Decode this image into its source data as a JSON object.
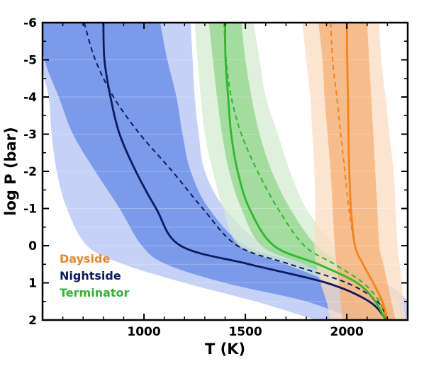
{
  "chart_data": {
    "type": "line",
    "xlabel": "T (K)",
    "ylabel": "log P (bar)",
    "xlim": [
      500,
      2300
    ],
    "ylim": [
      -6,
      2
    ],
    "y_inverted": true,
    "x_ticks": [
      1000,
      1500,
      2000
    ],
    "y_ticks": [
      -6,
      -5,
      -4,
      -3,
      -2,
      -1,
      0,
      1,
      2
    ],
    "x_tick_labels": [
      "1000",
      "1500",
      "2000"
    ],
    "y_tick_labels": [
      "-6",
      "-5",
      "-4",
      "-3",
      "-2",
      "-1",
      "0",
      "1",
      "2"
    ],
    "legend_position": "bottom-left",
    "legend_style": "colored-text",
    "y_grid": [
      -6,
      -5,
      -4,
      -3,
      -2,
      -1,
      -0.5,
      0,
      0.5,
      1,
      1.5,
      2
    ],
    "series": [
      {
        "name": "Nightside",
        "color": "#0d1a5e",
        "fill_colors": [
          "#c5d1f6",
          "#7b9bea"
        ],
        "outer_low": [
          490,
          490,
          530,
          545,
          570,
          620,
          720,
          900,
          1200,
          1550,
          1850
        ],
        "inner_low": [
          490,
          510,
          580,
          650,
          760,
          880,
          990,
          1110,
          1400,
          1800,
          2040
        ],
        "median": [
          800,
          805,
          835,
          880,
          960,
          1060,
          1180,
          1520,
          1900,
          2110,
          2195
        ],
        "dashed": [
          705,
          760,
          850,
          980,
          1140,
          1290,
          1460,
          1720,
          2000,
          2150,
          2200
        ],
        "inner_high": [
          1080,
          1115,
          1160,
          1190,
          1230,
          1320,
          1500,
          1800,
          2080,
          2200,
          2230
        ],
        "outer_high": [
          1230,
          1240,
          1250,
          1270,
          1300,
          1400,
          1600,
          1920,
          2180,
          2300,
          2300
        ]
      },
      {
        "name": "Terminator",
        "color": "#2eb82e",
        "fill_colors": [
          "#d4ecd0",
          "#8fd48a"
        ],
        "outer_low": [
          1250,
          1265,
          1280,
          1300,
          1340,
          1390,
          1470,
          1700,
          1920,
          2040,
          2080
        ],
        "inner_low": [
          1320,
          1340,
          1360,
          1385,
          1420,
          1480,
          1580,
          1790,
          1990,
          2090,
          2120
        ],
        "median": [
          1400,
          1402,
          1415,
          1430,
          1462,
          1520,
          1640,
          1860,
          2050,
          2140,
          2190
        ],
        "dashed": [
          1395,
          1405,
          1430,
          1480,
          1560,
          1660,
          1790,
          1940,
          2080,
          2160,
          2195
        ],
        "inner_high": [
          1480,
          1500,
          1530,
          1570,
          1630,
          1720,
          1850,
          1990,
          2110,
          2200,
          2230
        ],
        "outer_high": [
          1540,
          1570,
          1600,
          1660,
          1720,
          1800,
          1940,
          2060,
          2180,
          2250,
          2270
        ]
      },
      {
        "name": "Dayside",
        "color": "#f5821f",
        "fill_colors": [
          "#fbdcc0",
          "#f6ae75"
        ],
        "outer_low": [
          1780,
          1800,
          1820,
          1830,
          1840,
          1845,
          1840,
          1850,
          1870,
          1900,
          1920
        ],
        "inner_low": [
          1860,
          1880,
          1890,
          1905,
          1920,
          1930,
          1940,
          1950,
          1960,
          1970,
          1980
        ],
        "median": [
          2000,
          2002,
          2005,
          2008,
          2012,
          2020,
          2040,
          2080,
          2130,
          2175,
          2200
        ],
        "dashed": [
          1920,
          1930,
          1950,
          1970,
          1990,
          2010,
          2040,
          2080,
          2130,
          2170,
          2195
        ],
        "inner_high": [
          2100,
          2110,
          2120,
          2130,
          2140,
          2150,
          2160,
          2180,
          2200,
          2220,
          2240
        ],
        "outer_high": [
          2160,
          2170,
          2190,
          2210,
          2230,
          2240,
          2250,
          2260,
          2270,
          2280,
          2290
        ]
      }
    ],
    "y_series_points": [
      -6,
      -5,
      -4,
      -3,
      -2,
      -1,
      0,
      0.5,
      1,
      1.5,
      2
    ]
  }
}
